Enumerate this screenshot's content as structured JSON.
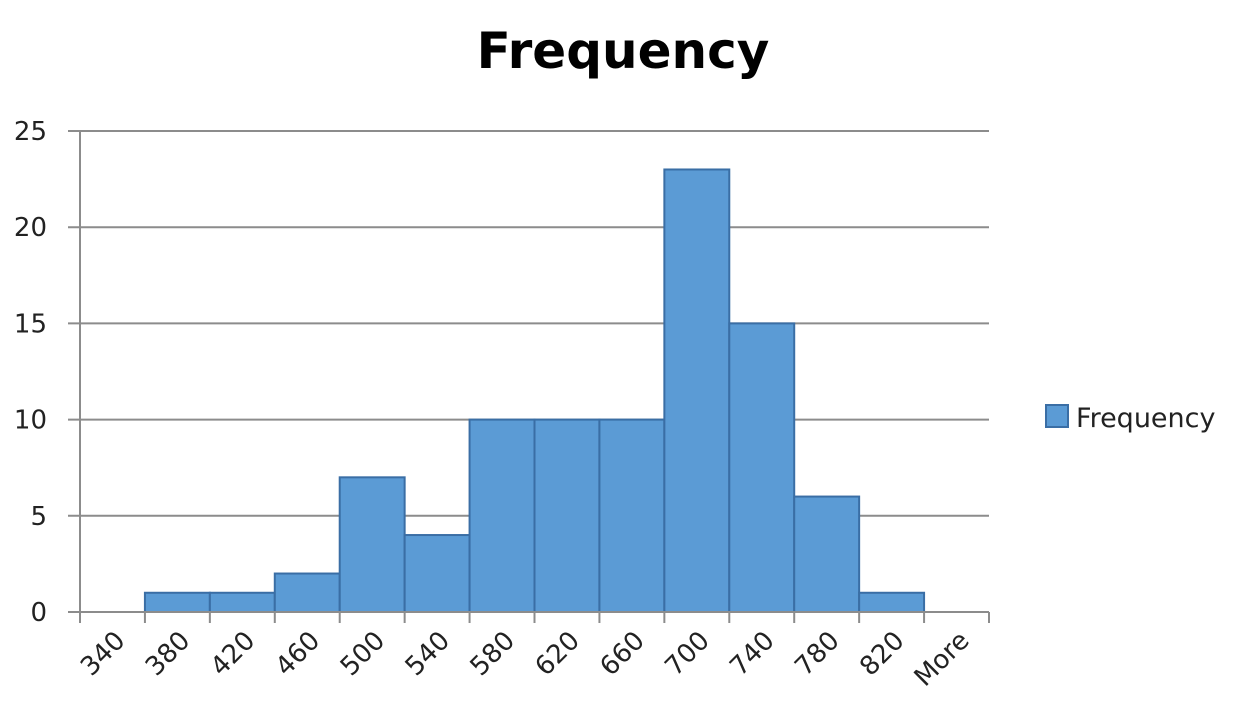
{
  "chart_data": {
    "type": "bar",
    "title": "Frequency",
    "xlabel": "",
    "ylabel": "",
    "categories": [
      "340",
      "380",
      "420",
      "460",
      "500",
      "540",
      "580",
      "620",
      "660",
      "700",
      "740",
      "780",
      "820",
      "More"
    ],
    "series": [
      {
        "name": "Frequency",
        "color": "#5B9BD5",
        "values": [
          0,
          1,
          1,
          2,
          7,
          4,
          10,
          10,
          10,
          23,
          15,
          6,
          1,
          0
        ]
      }
    ],
    "ylim": [
      0,
      25
    ],
    "yticks": [
      "0",
      "5",
      "10",
      "15",
      "20",
      "25"
    ],
    "grid": true,
    "legend_position": "right",
    "bar_gap": 0,
    "colors": {
      "bar_fill": "#5B9BD5",
      "bar_edge": "#3A6EA5",
      "grid": "#8C8C8C",
      "axis": "#8C8C8C"
    }
  }
}
